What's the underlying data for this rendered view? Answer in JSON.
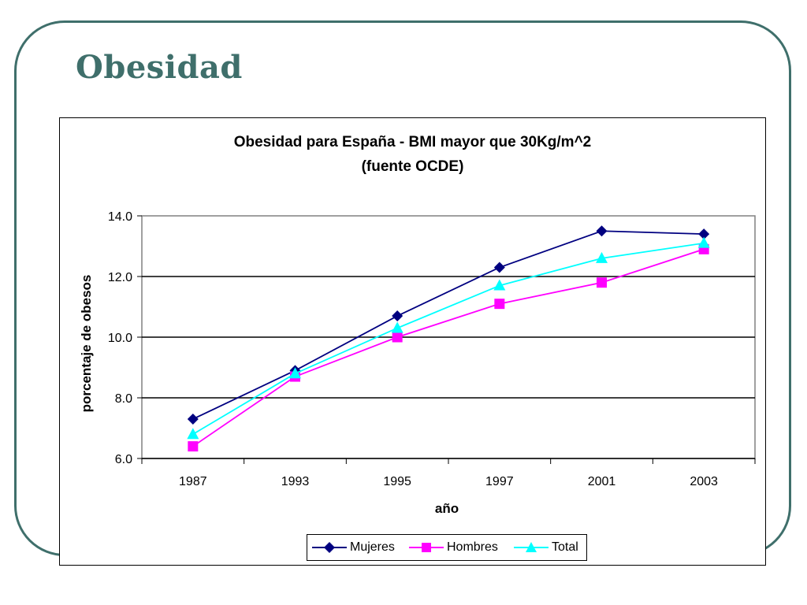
{
  "slide": {
    "title": "Obesidad"
  },
  "chart_data": {
    "type": "line",
    "title_line1": "Obesidad para España - BMI mayor que 30Kg/m^2",
    "title_line2": "(fuente OCDE)",
    "xlabel": "año",
    "ylabel": "porcentaje de obesos",
    "categories": [
      "1987",
      "1993",
      "1995",
      "1997",
      "2001",
      "2003"
    ],
    "ylim": [
      6.0,
      14.0
    ],
    "yticks": [
      "6.0",
      "8.0",
      "10.0",
      "12.0",
      "14.0"
    ],
    "grid": "horizontal",
    "legend_position": "bottom",
    "series": [
      {
        "name": "Mujeres",
        "values": [
          7.3,
          8.9,
          10.7,
          12.3,
          13.5,
          13.4
        ],
        "color": "#000080",
        "marker": "diamond"
      },
      {
        "name": "Hombres",
        "values": [
          6.4,
          8.7,
          10.0,
          11.1,
          11.8,
          12.9
        ],
        "color": "#ff00ff",
        "marker": "square"
      },
      {
        "name": "Total",
        "values": [
          6.8,
          8.8,
          10.3,
          11.7,
          12.6,
          13.1
        ],
        "color": "#00ffff",
        "marker": "triangle"
      }
    ]
  }
}
